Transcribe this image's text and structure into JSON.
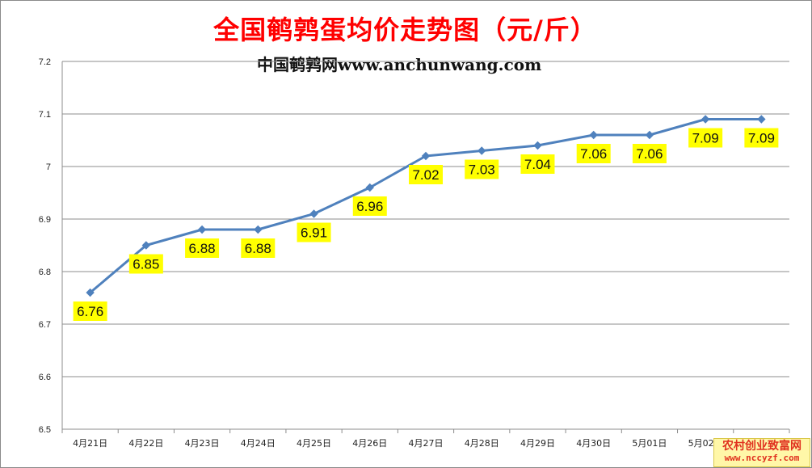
{
  "header": {
    "title": "全国鹌鹑蛋均价走势图（元/斤）",
    "subtitle": "中国鹌鹑网www.anchunwang.com"
  },
  "watermark": {
    "line1": "农村创业致富网",
    "line2": "www.nccyzf.com"
  },
  "colors": {
    "line": "#4f81bd",
    "label_bg": "#ffff00",
    "title": "#ff0000",
    "grid": "#8c8c8c"
  },
  "chart_data": {
    "type": "line",
    "title": "全国鹌鹑蛋均价走势图（元/斤）",
    "subtitle": "中国鹌鹑网www.anchunwang.com",
    "xlabel": "",
    "ylabel": "",
    "categories": [
      "4月21日",
      "4月22日",
      "4月23日",
      "4月24日",
      "4月25日",
      "4月26日",
      "4月27日",
      "4月28日",
      "4月29日",
      "4月30日",
      "5月01日",
      "5月02日",
      "5月03日"
    ],
    "series": [
      {
        "values": [
          6.76,
          6.85,
          6.88,
          6.88,
          6.91,
          6.96,
          7.02,
          7.03,
          7.04,
          7.06,
          7.06,
          7.09,
          7.09
        ]
      }
    ],
    "data_labels": [
      "6.76",
      "6.85",
      "6.88",
      "6.88",
      "6.91",
      "6.96",
      "7.02",
      "7.03",
      "7.04",
      "7.06",
      "7.06",
      "7.09",
      "7.09"
    ],
    "ylim": [
      6.5,
      7.2
    ],
    "yticks": [
      "6.5",
      "6.6",
      "6.7",
      "6.8",
      "6.9",
      "7",
      "7.1",
      "7.2"
    ],
    "grid": "horizontal",
    "legend": "none",
    "marker": "diamond"
  }
}
